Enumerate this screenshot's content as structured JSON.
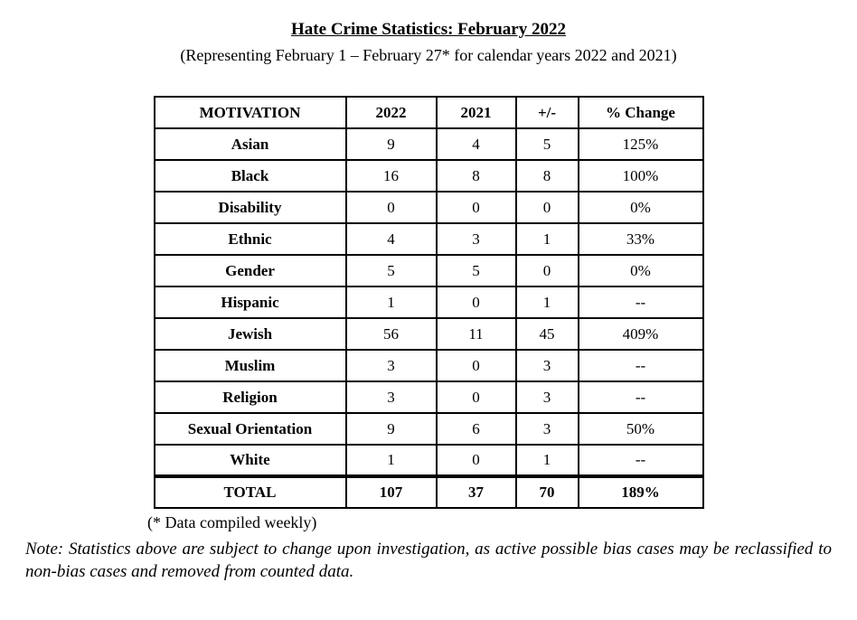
{
  "page": {
    "title": "Hate Crime Statistics: February 2022",
    "subtitle": "(Representing February 1 – February 27* for calendar years 2022 and 2021)",
    "footnote": "(* Data compiled weekly)",
    "note": "Note: Statistics above are subject to change upon investigation, as active possible bias cases may be reclassified to non-bias cases and removed from counted data."
  },
  "table": {
    "headers": [
      "MOTIVATION",
      "2022",
      "2021",
      "+/-",
      "% Change"
    ],
    "rows": [
      [
        "Asian",
        "9",
        "4",
        "5",
        "125%"
      ],
      [
        "Black",
        "16",
        "8",
        "8",
        "100%"
      ],
      [
        "Disability",
        "0",
        "0",
        "0",
        "0%"
      ],
      [
        "Ethnic",
        "4",
        "3",
        "1",
        "33%"
      ],
      [
        "Gender",
        "5",
        "5",
        "0",
        "0%"
      ],
      [
        "Hispanic",
        "1",
        "0",
        "1",
        "--"
      ],
      [
        "Jewish",
        "56",
        "11",
        "45",
        "409%"
      ],
      [
        "Muslim",
        "3",
        "0",
        "3",
        "--"
      ],
      [
        "Religion",
        "3",
        "0",
        "3",
        "--"
      ],
      [
        "Sexual Orientation",
        "9",
        "6",
        "3",
        "50%"
      ],
      [
        "White",
        "1",
        "0",
        "1",
        "--"
      ]
    ],
    "total": [
      "TOTAL",
      "107",
      "37",
      "70",
      "189%"
    ]
  },
  "colors": {
    "text": "#000000",
    "background": "#ffffff",
    "border": "#000000"
  }
}
